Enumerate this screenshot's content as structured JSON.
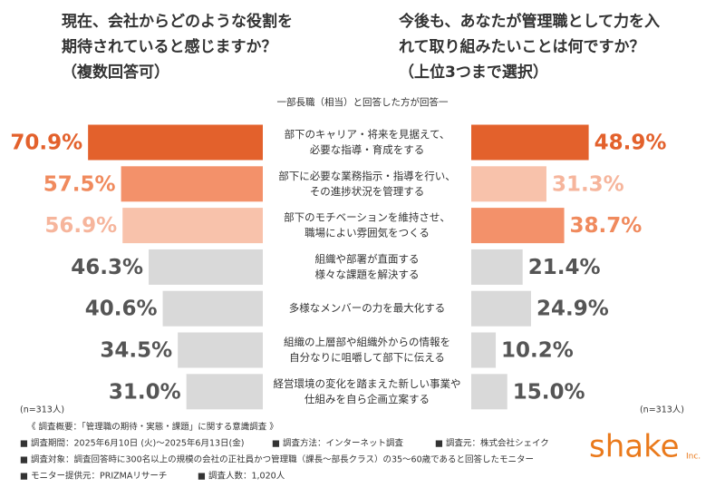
{
  "chart_data": {
    "type": "butterfly",
    "subtitle": "一部長職（相当）と回答した方が回答一",
    "categories": [
      [
        "部下のキャリア・将来を見据えて、",
        "必要な指導・育成をする"
      ],
      [
        "部下に必要な業務指示・指導を行い、",
        "その進捗状況を管理する"
      ],
      [
        "部下のモチベーションを維持させ、",
        "職場によい雰囲気をつくる"
      ],
      [
        "組織や部署が直面する",
        "様々な課題を解決する"
      ],
      [
        "多様なメンバーの力を最大化する"
      ],
      [
        "組織の上層部や組織外からの情報を",
        "自分なりに咀嚼して部下に伝える"
      ],
      [
        "経営環境の変化を踏まえた新しい事業や",
        "仕組みを自ら企画立案する"
      ]
    ],
    "series": [
      {
        "title": [
          "現在、会社からどのような役割を",
          "期待されていると感じますか？",
          "（複数回答可）"
        ],
        "sample": "(n=313人)",
        "values": [
          70.9,
          57.5,
          56.9,
          46.3,
          40.6,
          34.5,
          31.0
        ],
        "value_labels": [
          "70.9%",
          "57.5%",
          "56.9%",
          "46.3%",
          "40.6%",
          "34.5%",
          "31.0%"
        ],
        "colors": [
          "#e3612c",
          "#f3916a",
          "#f8c2ab",
          "#d9d9d9",
          "#d9d9d9",
          "#d9d9d9",
          "#d9d9d9"
        ],
        "label_colors": [
          "#e3612c",
          "#f08a5d",
          "#f6b59c",
          "#555555",
          "#555555",
          "#555555",
          "#555555"
        ]
      },
      {
        "title": [
          "今後も、あなたが管理職として力を入",
          "れて取り組みたいことは何ですか？",
          "（上位3つまで選択）"
        ],
        "sample": "(n=313人)",
        "values": [
          48.9,
          31.3,
          38.7,
          21.4,
          24.9,
          10.2,
          15.0
        ],
        "value_labels": [
          "48.9%",
          "31.3%",
          "38.7%",
          "21.4%",
          "24.9%",
          "10.2%",
          "15.0%"
        ],
        "colors": [
          "#e3612c",
          "#f8c2ab",
          "#f3916a",
          "#d9d9d9",
          "#d9d9d9",
          "#d9d9d9",
          "#d9d9d9"
        ],
        "label_colors": [
          "#e3612c",
          "#f6b59c",
          "#f08a5d",
          "#555555",
          "#555555",
          "#555555",
          "#555555"
        ]
      }
    ]
  },
  "footer": {
    "rows": [
      [
        "《 調査概要：「管理職の期待・実態・課題」に関する意識調査 》"
      ],
      [
        "■ 調査期間：2025年6月10日 (火)～2025年6月13日(金)",
        "■ 調査方法：インターネット調査",
        "■ 調査元：株式会社シェイク"
      ],
      [
        "■ 調査対象：調査回答時に300名以上の規模の会社の正社員かつ管理職（課長～部長クラス）の35～60歳であると回答したモニター"
      ],
      [
        "■ モニター提供元：PRIZMAリサーチ",
        "■ 調査人数：1,020人"
      ]
    ],
    "logo": "shake",
    "logo_suffix": "Inc."
  }
}
